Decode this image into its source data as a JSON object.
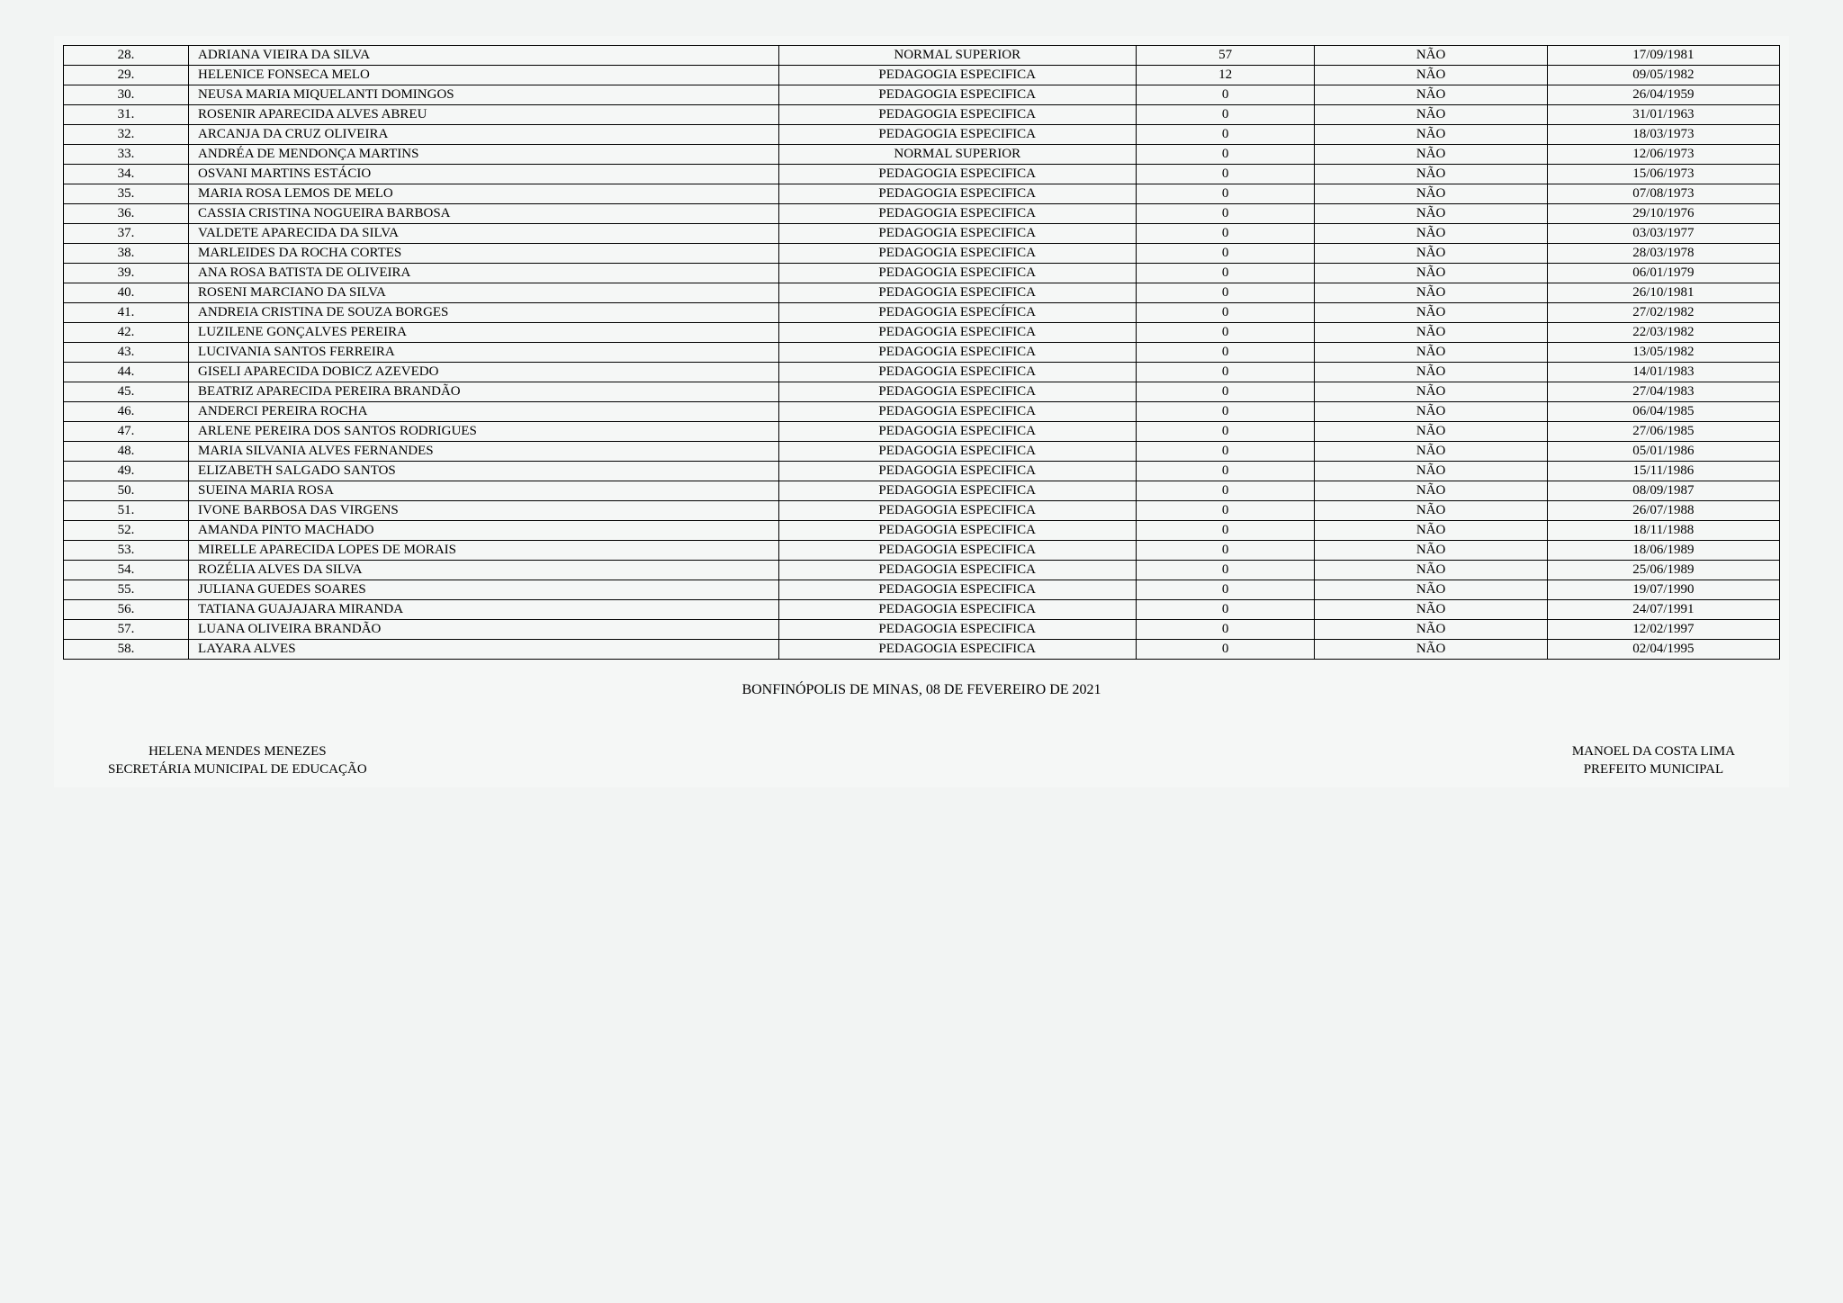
{
  "table": {
    "rows": [
      {
        "num": "28.",
        "name": "ADRIANA VIEIRA DA SILVA",
        "type": "NORMAL SUPERIOR",
        "score": "57",
        "flag": "NÃO",
        "date": "17/09/1981"
      },
      {
        "num": "29.",
        "name": "HELENICE FONSECA MELO",
        "type": "PEDAGOGIA ESPECIFICA",
        "score": "12",
        "flag": "NÃO",
        "date": "09/05/1982"
      },
      {
        "num": "30.",
        "name": "NEUSA MARIA MIQUELANTI DOMINGOS",
        "type": "PEDAGOGIA ESPECIFICA",
        "score": "0",
        "flag": "NÃO",
        "date": "26/04/1959"
      },
      {
        "num": "31.",
        "name": "ROSENIR APARECIDA ALVES ABREU",
        "type": "PEDAGOGIA ESPECIFICA",
        "score": "0",
        "flag": "NÃO",
        "date": "31/01/1963"
      },
      {
        "num": "32.",
        "name": "ARCANJA DA CRUZ OLIVEIRA",
        "type": "PEDAGOGIA ESPECIFICA",
        "score": "0",
        "flag": "NÃO",
        "date": "18/03/1973"
      },
      {
        "num": "33.",
        "name": "ANDRÉA DE MENDONÇA MARTINS",
        "type": "NORMAL SUPERIOR",
        "score": "0",
        "flag": "NÃO",
        "date": "12/06/1973"
      },
      {
        "num": "34.",
        "name": "OSVANI MARTINS ESTÁCIO",
        "type": "PEDAGOGIA ESPECIFICA",
        "score": "0",
        "flag": "NÃO",
        "date": "15/06/1973"
      },
      {
        "num": "35.",
        "name": "MARIA ROSA LEMOS DE MELO",
        "type": "PEDAGOGIA ESPECIFICA",
        "score": "0",
        "flag": "NÃO",
        "date": "07/08/1973"
      },
      {
        "num": "36.",
        "name": "CASSIA CRISTINA NOGUEIRA BARBOSA",
        "type": "PEDAGOGIA ESPECIFICA",
        "score": "0",
        "flag": "NÃO",
        "date": "29/10/1976"
      },
      {
        "num": "37.",
        "name": "VALDETE APARECIDA DA SILVA",
        "type": "PEDAGOGIA ESPECIFICA",
        "score": "0",
        "flag": "NÃO",
        "date": "03/03/1977"
      },
      {
        "num": "38.",
        "name": "MARLEIDES DA ROCHA CORTES",
        "type": "PEDAGOGIA ESPECIFICA",
        "score": "0",
        "flag": "NÃO",
        "date": "28/03/1978"
      },
      {
        "num": "39.",
        "name": "ANA ROSA BATISTA DE OLIVEIRA",
        "type": "PEDAGOGIA ESPECIFICA",
        "score": "0",
        "flag": "NÃO",
        "date": "06/01/1979"
      },
      {
        "num": "40.",
        "name": "ROSENI MARCIANO DA SILVA",
        "type": "PEDAGOGIA ESPECIFICA",
        "score": "0",
        "flag": "NÃO",
        "date": "26/10/1981"
      },
      {
        "num": "41.",
        "name": "ANDREIA CRISTINA DE SOUZA BORGES",
        "type": "PEDAGOGIA ESPECÍFICA",
        "score": "0",
        "flag": "NÃO",
        "date": "27/02/1982"
      },
      {
        "num": "42.",
        "name": "LUZILENE GONÇALVES PEREIRA",
        "type": "PEDAGOGIA ESPECIFICA",
        "score": "0",
        "flag": "NÃO",
        "date": "22/03/1982"
      },
      {
        "num": "43.",
        "name": "LUCIVANIA SANTOS FERREIRA",
        "type": "PEDAGOGIA ESPECIFICA",
        "score": "0",
        "flag": "NÃO",
        "date": "13/05/1982"
      },
      {
        "num": "44.",
        "name": "GISELI APARECIDA DOBICZ AZEVEDO",
        "type": "PEDAGOGIA ESPECIFICA",
        "score": "0",
        "flag": "NÃO",
        "date": "14/01/1983"
      },
      {
        "num": "45.",
        "name": "BEATRIZ APARECIDA PEREIRA BRANDÃO",
        "type": "PEDAGOGIA ESPECIFICA",
        "score": "0",
        "flag": "NÃO",
        "date": "27/04/1983"
      },
      {
        "num": "46.",
        "name": "ANDERCI PEREIRA ROCHA",
        "type": "PEDAGOGIA ESPECIFICA",
        "score": "0",
        "flag": "NÃO",
        "date": "06/04/1985"
      },
      {
        "num": "47.",
        "name": "ARLENE PEREIRA DOS SANTOS RODRIGUES",
        "type": "PEDAGOGIA ESPECIFICA",
        "score": "0",
        "flag": "NÃO",
        "date": "27/06/1985"
      },
      {
        "num": "48.",
        "name": "MARIA SILVANIA ALVES FERNANDES",
        "type": "PEDAGOGIA ESPECIFICA",
        "score": "0",
        "flag": "NÃO",
        "date": "05/01/1986"
      },
      {
        "num": "49.",
        "name": "ELIZABETH SALGADO SANTOS",
        "type": "PEDAGOGIA ESPECIFICA",
        "score": "0",
        "flag": "NÃO",
        "date": "15/11/1986"
      },
      {
        "num": "50.",
        "name": "SUEINA MARIA ROSA",
        "type": "PEDAGOGIA ESPECIFICA",
        "score": "0",
        "flag": "NÃO",
        "date": "08/09/1987"
      },
      {
        "num": "51.",
        "name": "IVONE BARBOSA DAS VIRGENS",
        "type": "PEDAGOGIA ESPECIFICA",
        "score": "0",
        "flag": "NÃO",
        "date": "26/07/1988"
      },
      {
        "num": "52.",
        "name": "AMANDA PINTO MACHADO",
        "type": "PEDAGOGIA ESPECIFICA",
        "score": "0",
        "flag": "NÃO",
        "date": "18/11/1988"
      },
      {
        "num": "53.",
        "name": "MIRELLE APARECIDA LOPES DE MORAIS",
        "type": "PEDAGOGIA ESPECIFICA",
        "score": "0",
        "flag": "NÃO",
        "date": "18/06/1989"
      },
      {
        "num": "54.",
        "name": "ROZÉLIA ALVES DA SILVA",
        "type": "PEDAGOGIA ESPECIFICA",
        "score": "0",
        "flag": "NÃO",
        "date": "25/06/1989"
      },
      {
        "num": "55.",
        "name": "JULIANA GUEDES SOARES",
        "type": "PEDAGOGIA ESPECIFICA",
        "score": "0",
        "flag": "NÃO",
        "date": "19/07/1990"
      },
      {
        "num": "56.",
        "name": "TATIANA GUAJAJARA MIRANDA",
        "type": "PEDAGOGIA ESPECIFICA",
        "score": "0",
        "flag": "NÃO",
        "date": "24/07/1991"
      },
      {
        "num": "57.",
        "name": "LUANA OLIVEIRA BRANDÃO",
        "type": "PEDAGOGIA ESPECIFICA",
        "score": "0",
        "flag": "NÃO",
        "date": "12/02/1997"
      },
      {
        "num": "58.",
        "name": "LAYARA ALVES",
        "type": "PEDAGOGIA ESPECIFICA",
        "score": "0",
        "flag": "NÃO",
        "date": "02/04/1995"
      }
    ]
  },
  "footer": {
    "location_date": "BONFINÓPOLIS DE MINAS, 08 DE FEVEREIRO DE 2021"
  },
  "signatures": {
    "left": {
      "name": "HELENA MENDES MENEZES",
      "title": "SECRETÁRIA MUNICIPAL DE EDUCAÇÃO"
    },
    "right": {
      "name": "MANOEL DA COSTA LIMA",
      "title": "PREFEITO MUNICIPAL"
    }
  },
  "styling": {
    "background_color": "#f2f4f3",
    "border_color": "#000000",
    "text_color": "#000000",
    "font_family": "Times New Roman",
    "table_font_size": 15,
    "footer_font_size": 16,
    "column_widths_percent": {
      "num": 7,
      "name": 33,
      "type": 20,
      "score": 10,
      "flag": 13,
      "date": 13
    },
    "column_align": {
      "num": "center",
      "name": "left",
      "type": "center",
      "score": "center",
      "flag": "center",
      "date": "center"
    }
  }
}
